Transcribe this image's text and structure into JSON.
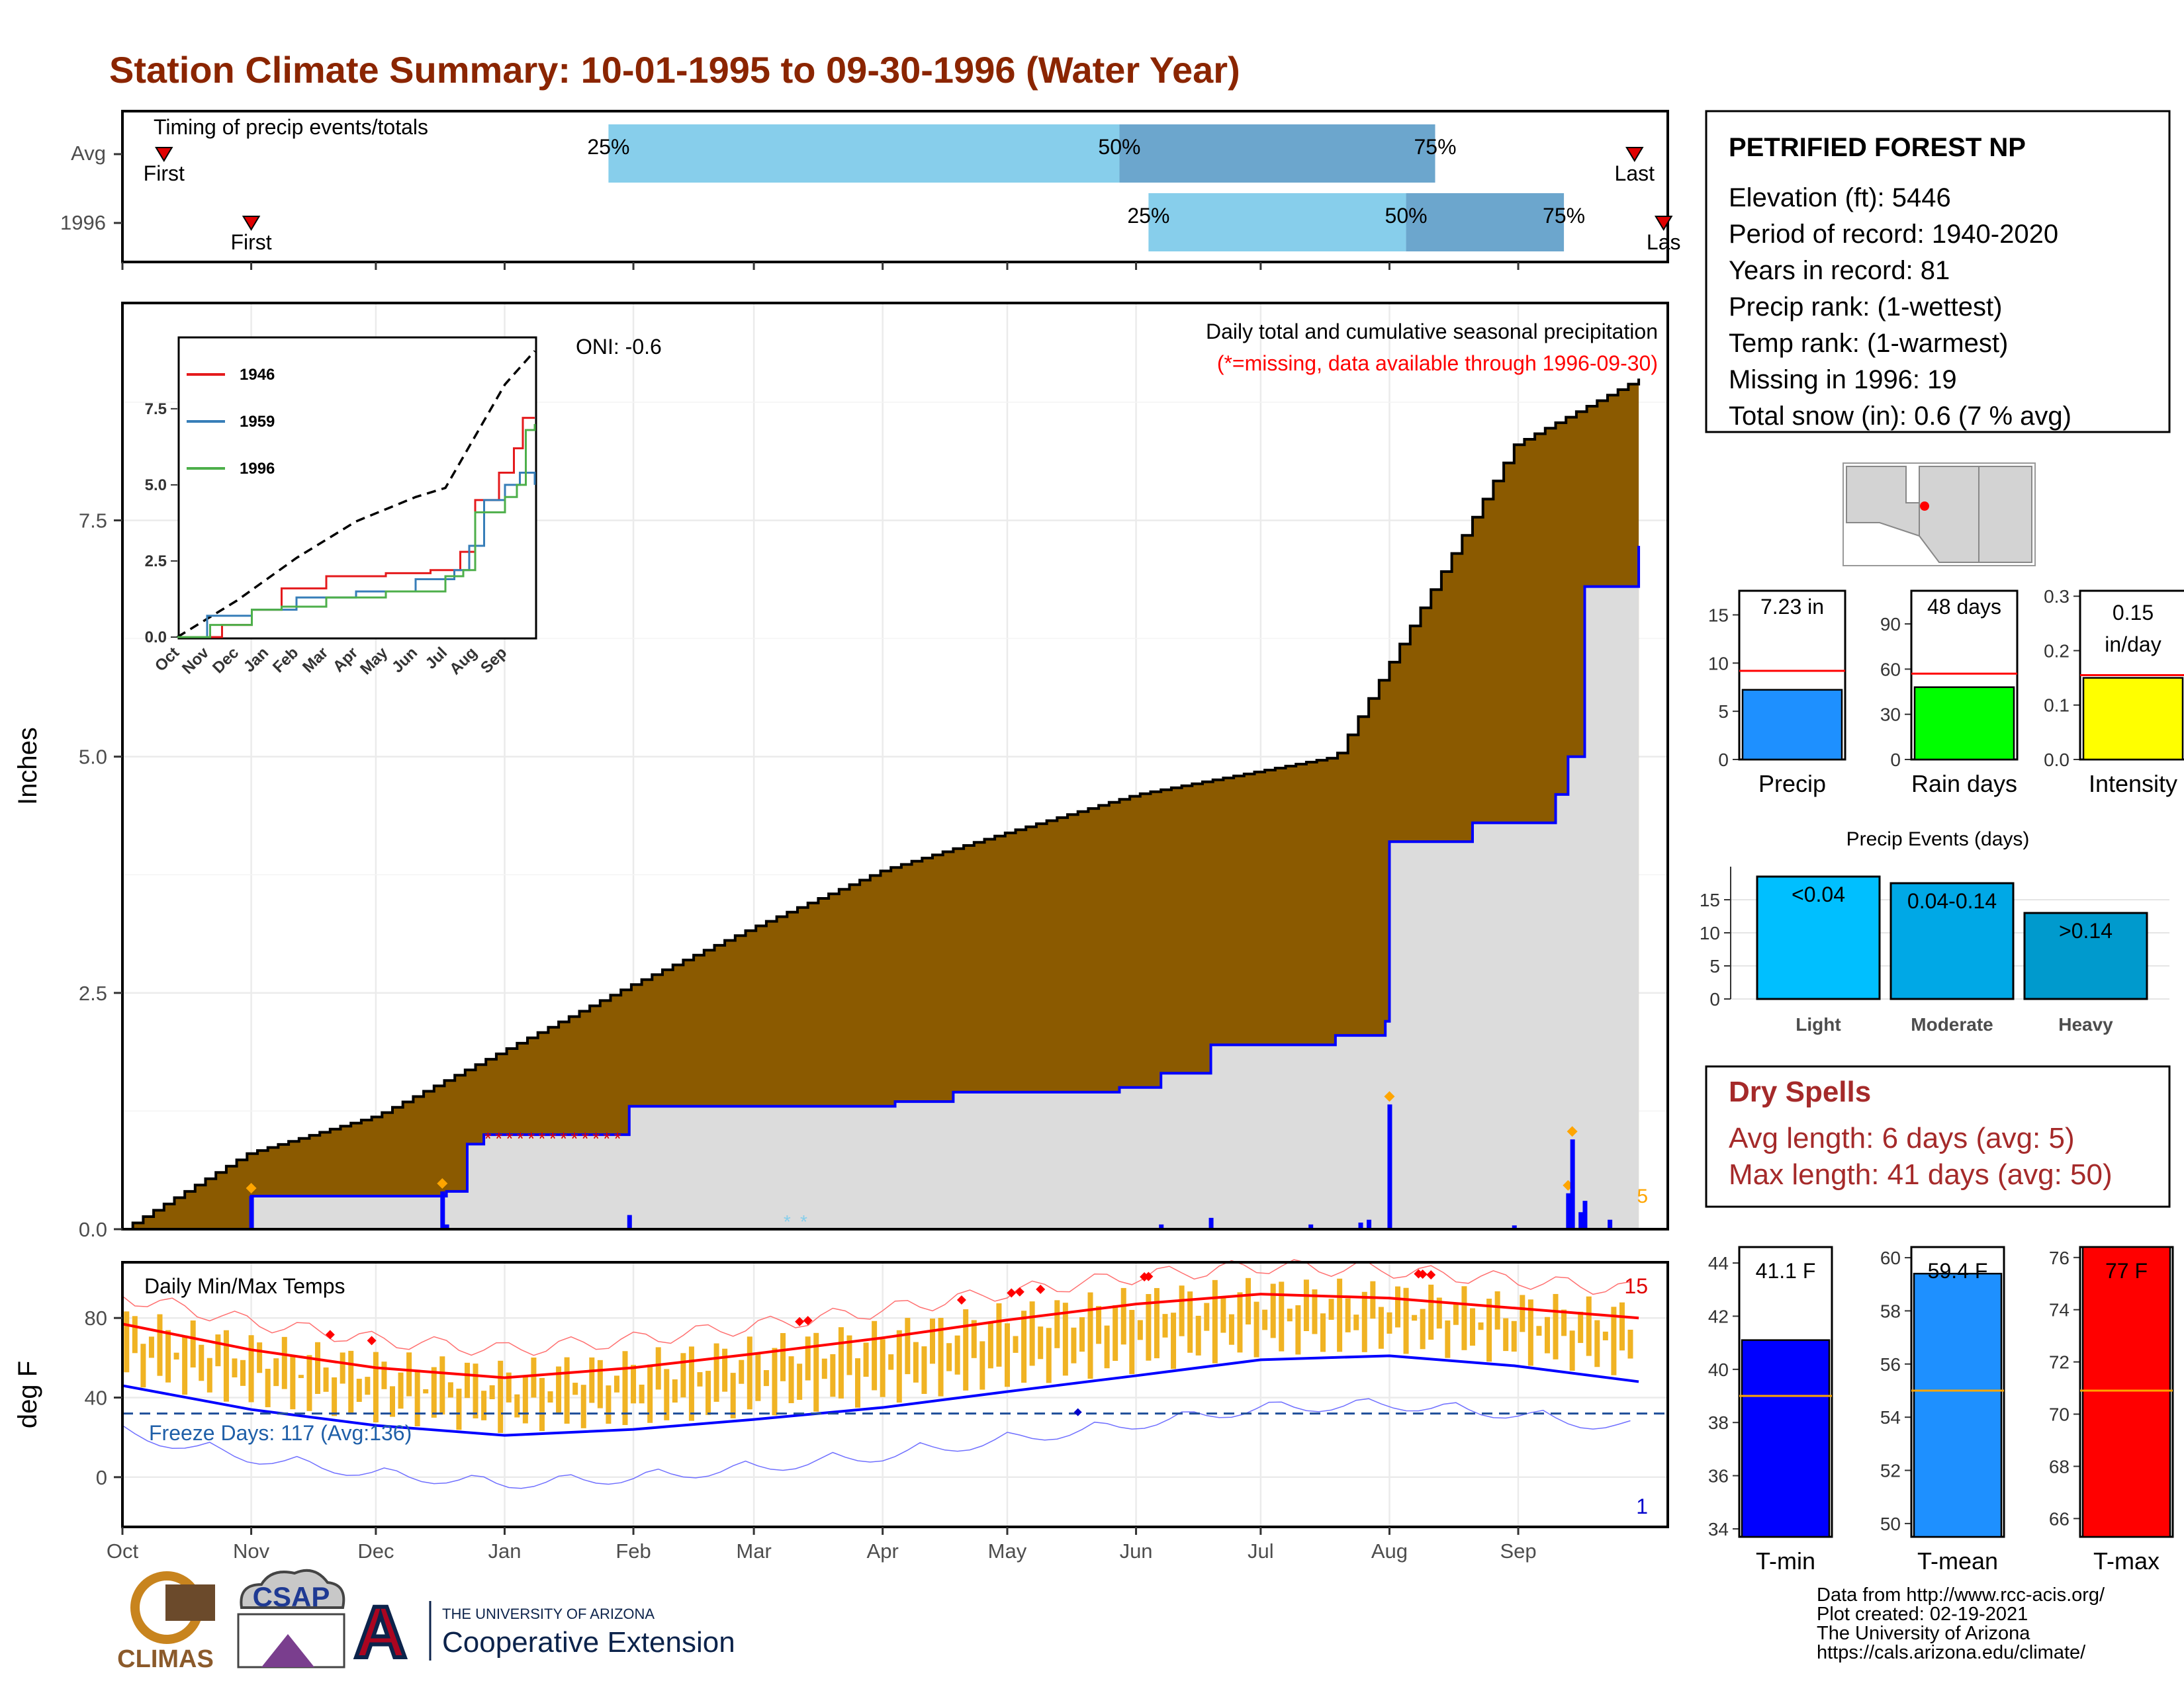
{
  "title": "Station Climate Summary: 10-01-1995 to 09-30-1996 (Water Year)",
  "months": [
    "Oct",
    "Nov",
    "Dec",
    "Jan",
    "Feb",
    "Mar",
    "Apr",
    "May",
    "Jun",
    "Jul",
    "Aug",
    "Sep"
  ],
  "timing": {
    "label": "Timing of precip events/totals",
    "rows": [
      {
        "name": "Avg",
        "first": "First",
        "last": "Last",
        "p25": "25%",
        "p50": "50%",
        "p75": "75%",
        "first_day": 10,
        "p25_day": 117,
        "p50_day": 240,
        "p75_day": 316,
        "last_day": 364
      },
      {
        "name": "1996",
        "first": "First",
        "last": "Las",
        "p25": "25%",
        "p50": "50%",
        "p75": "75%",
        "first_day": 31,
        "p25_day": 247,
        "p50_day": 309,
        "p75_day": 347,
        "last_day": 371
      }
    ],
    "colors": {
      "light": "#87CEEB",
      "dark": "#6CA6CD"
    }
  },
  "info": {
    "station": "PETRIFIED FOREST NP",
    "lines": [
      "Elevation (ft): 5446",
      "Period of record: 1940-2020",
      "Years in record: 81",
      "Precip rank:  (1-wettest)",
      "Temp rank:  (1-warmest)",
      "Missing in 1996: 19",
      "Total snow (in): 0.6 (7 % avg)"
    ]
  },
  "precip_panel": {
    "caption": "Daily total and cumulative seasonal precipitation",
    "missing_note": "(*=missing, data available through 1996-09-30)",
    "oni": "ONI: -0.6",
    "ylabel": "Inches",
    "yticks": [
      "0.0",
      "2.5",
      "5.0",
      "7.5"
    ],
    "corner_count": "5"
  },
  "inset": {
    "legend": [
      "1946",
      "1959",
      "1996"
    ],
    "legend_colors": [
      "#e41a1c",
      "#377eb8",
      "#4daf4a"
    ],
    "yticks": [
      "0.0",
      "2.5",
      "5.0",
      "7.5"
    ],
    "xticks": [
      "Oct",
      "Nov",
      "Dec",
      "Jan",
      "Feb",
      "Mar",
      "Apr",
      "May",
      "Jun",
      "Jul",
      "Aug",
      "Sep"
    ]
  },
  "mini_bars": [
    {
      "label": "Precip",
      "value_text": "7.23 in",
      "value": 7.23,
      "ymax": 17.5,
      "avg": 9.2,
      "color": "#1E90FF",
      "yticks": [
        "0",
        "5",
        "10",
        "15"
      ]
    },
    {
      "label": "Rain days",
      "value_text": "48 days",
      "value": 48,
      "ymax": 112,
      "avg": 57,
      "color": "#00FF00",
      "yticks": [
        "0",
        "30",
        "60",
        "90"
      ]
    },
    {
      "label": "Intensity",
      "value_text1": "0.15",
      "value_text2": "in/day",
      "value": 0.15,
      "ymax": 0.31,
      "avg": 0.155,
      "color": "#FFFF00",
      "yticks": [
        "0.0",
        "0.1",
        "0.2",
        "0.3"
      ]
    }
  ],
  "events": {
    "title": "Precip Events (days)",
    "yticks": [
      "0",
      "5",
      "10",
      "15"
    ],
    "bars": [
      {
        "category": "Light",
        "label": "<0.04",
        "value": 18.5,
        "color": "#00BFFF"
      },
      {
        "category": "Moderate",
        "label": "0.04-0.14",
        "value": 17.5,
        "color": "#00A8E6"
      },
      {
        "category": "Heavy",
        "label": ">0.14",
        "value": 13,
        "color": "#009ACD"
      }
    ]
  },
  "dry_spells": {
    "title": "Dry Spells",
    "lines": [
      "Avg length: 6 days (avg: 5)",
      "Max length: 41 days (avg: 50)"
    ]
  },
  "temp_panel": {
    "title": "Daily Min/Max Temps",
    "freeze": "Freeze Days: 117 (Avg:136)",
    "ylabel": "deg F",
    "yticks": [
      "0",
      "40",
      "80"
    ],
    "count_hi": "15",
    "count_lo": "1"
  },
  "temp_bars": [
    {
      "label": "T-min",
      "value_text": "41.1 F",
      "value": 41.1,
      "ymin": 33.7,
      "ymax": 44.6,
      "avg": 39.0,
      "color": "#0000FF",
      "yticks": [
        "34",
        "36",
        "38",
        "40",
        "42",
        "44"
      ]
    },
    {
      "label": "T-mean",
      "value_text": "59.4 F",
      "value": 59.4,
      "ymin": 49.5,
      "ymax": 60.4,
      "avg": 55.0,
      "color": "#1E90FF",
      "yticks": [
        "50",
        "52",
        "54",
        "56",
        "58",
        "60"
      ]
    },
    {
      "label": "T-max",
      "value_text": "77 F",
      "value": 77.0,
      "ymin": 65.3,
      "ymax": 76.4,
      "avg": 70.9,
      "color": "#FF0000",
      "yticks": [
        "66",
        "68",
        "70",
        "72",
        "74",
        "76"
      ]
    }
  ],
  "footer": {
    "logos": [
      "CLIMAS",
      "CSAP"
    ],
    "ua_line1": "THE UNIVERSITY OF ARIZONA",
    "ua_line2": "Cooperative Extension",
    "ua_letter": "A",
    "credits": [
      "Data from http://www.rcc-acis.org/",
      "Plot created: 02-19-2021",
      "The University of Arizona",
      "https://cals.arizona.edu/climate/"
    ]
  },
  "chart_data": {
    "type": "area",
    "title": "Daily total and cumulative seasonal precipitation",
    "ylabel": "Inches",
    "ylim": [
      0,
      9.8
    ],
    "x_range_days": [
      0,
      365
    ],
    "series": [
      {
        "name": "",
        "kind": "cumulative-average",
        "points": [
          [
            0,
            0
          ],
          [
            30,
            0.8
          ],
          [
            61,
            1.2
          ],
          [
            92,
            1.9
          ],
          [
            123,
            2.6
          ],
          [
            152,
            3.2
          ],
          [
            183,
            3.8
          ],
          [
            213,
            4.2
          ],
          [
            244,
            4.6
          ],
          [
            274,
            4.85
          ],
          [
            292,
            5.0
          ],
          [
            305,
            6.0
          ],
          [
            335,
            8.3
          ],
          [
            365,
            9.0
          ]
        ]
      },
      {
        "name": "",
        "kind": "cumulative-1996",
        "points": [
          [
            0,
            0
          ],
          [
            30,
            0
          ],
          [
            31,
            0.35
          ],
          [
            77,
            0.35
          ],
          [
            78,
            0.4
          ],
          [
            83,
            0.9
          ],
          [
            87,
            1.0
          ],
          [
            121,
            1.0
          ],
          [
            122,
            1.3
          ],
          [
            186,
            1.35
          ],
          [
            200,
            1.45
          ],
          [
            240,
            1.5
          ],
          [
            250,
            1.65
          ],
          [
            262,
            1.95
          ],
          [
            292,
            2.05
          ],
          [
            304,
            2.2
          ],
          [
            305,
            4.1
          ],
          [
            325,
            4.3
          ],
          [
            345,
            4.6
          ],
          [
            348,
            5.0
          ],
          [
            352,
            6.8
          ],
          [
            365,
            7.23
          ]
        ]
      }
    ],
    "daily_precip": [
      {
        "day": 31,
        "value": 0.35
      },
      {
        "day": 77,
        "value": 0.4
      },
      {
        "day": 78,
        "value": 0.05
      },
      {
        "day": 122,
        "value": 0.15
      },
      {
        "day": 250,
        "value": 0.05
      },
      {
        "day": 262,
        "value": 0.12
      },
      {
        "day": 286,
        "value": 0.05
      },
      {
        "day": 298,
        "value": 0.07
      },
      {
        "day": 300,
        "value": 0.1
      },
      {
        "day": 305,
        "value": 1.32
      },
      {
        "day": 335,
        "value": 0.04
      },
      {
        "day": 348,
        "value": 0.38
      },
      {
        "day": 349,
        "value": 0.95
      },
      {
        "day": 351,
        "value": 0.18
      },
      {
        "day": 352,
        "value": 0.3
      },
      {
        "day": 358,
        "value": 0.1
      }
    ],
    "temperature": {
      "ylim": [
        -25,
        108
      ],
      "avg_max": [
        [
          0,
          77
        ],
        [
          31,
          64
        ],
        [
          61,
          55
        ],
        [
          92,
          50
        ],
        [
          123,
          55
        ],
        [
          152,
          62
        ],
        [
          183,
          70
        ],
        [
          213,
          79
        ],
        [
          244,
          87
        ],
        [
          274,
          92
        ],
        [
          305,
          90
        ],
        [
          335,
          85
        ],
        [
          365,
          80
        ]
      ],
      "avg_min": [
        [
          0,
          46
        ],
        [
          31,
          34
        ],
        [
          61,
          26
        ],
        [
          92,
          21
        ],
        [
          123,
          24
        ],
        [
          152,
          29
        ],
        [
          183,
          35
        ],
        [
          213,
          43
        ],
        [
          244,
          51
        ],
        [
          274,
          59
        ],
        [
          305,
          61
        ],
        [
          335,
          56
        ],
        [
          365,
          48
        ]
      ],
      "freeze_line": 32
    }
  }
}
